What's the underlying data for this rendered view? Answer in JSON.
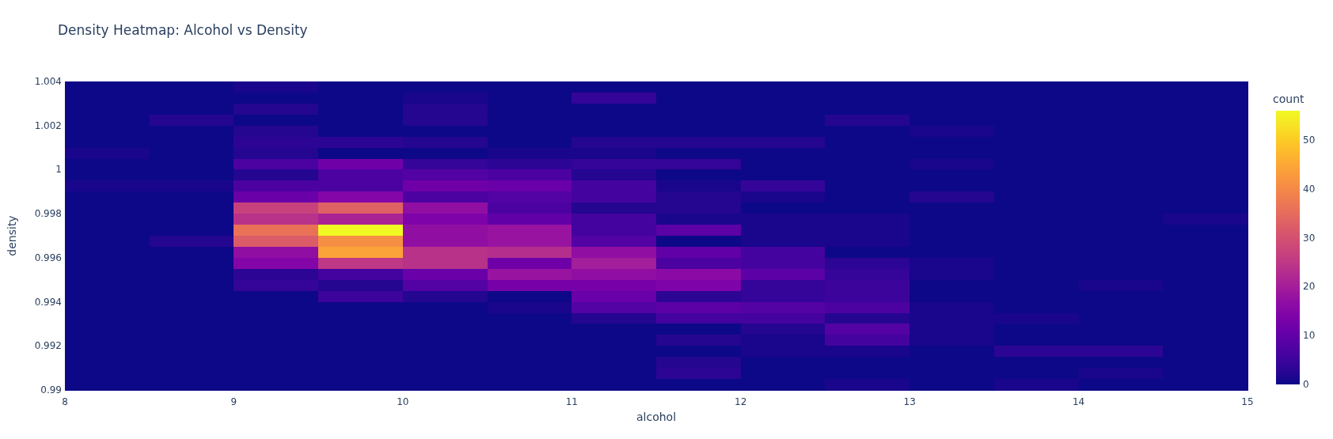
{
  "chart_data": {
    "type": "heatmap",
    "title": "Density Heatmap: Alcohol vs Density",
    "xlabel": "alcohol",
    "ylabel": "density",
    "clabel": "count",
    "xlim": [
      8,
      15
    ],
    "xticks": [
      8,
      9,
      10,
      11,
      12,
      13,
      14,
      15
    ],
    "ylim": [
      0.99,
      1.004
    ],
    "yticks": [
      0.99,
      0.992,
      0.994,
      0.996,
      0.998,
      1,
      1.002,
      1.004
    ],
    "clim": [
      0,
      56
    ],
    "cticks": [
      0,
      10,
      20,
      30,
      40,
      50
    ],
    "cells": [
      [
        0,
        0,
        1,
        0,
        0,
        0,
        0,
        0,
        0,
        0,
        0,
        0,
        0,
        0
      ],
      [
        0,
        0,
        0,
        0,
        1,
        0,
        4,
        0,
        0,
        0,
        0,
        0,
        0,
        0
      ],
      [
        0,
        0,
        2,
        0,
        2,
        0,
        0,
        0,
        0,
        0,
        0,
        0,
        0,
        0
      ],
      [
        0,
        2,
        0,
        0,
        2,
        0,
        0,
        0,
        0,
        2,
        0,
        0,
        0,
        0
      ],
      [
        0,
        0,
        2,
        0,
        0,
        0,
        0,
        0,
        0,
        0,
        1,
        0,
        0,
        0
      ],
      [
        0,
        0,
        3,
        3,
        2,
        0,
        2,
        2,
        2,
        0,
        0,
        0,
        0,
        0
      ],
      [
        1,
        0,
        2,
        0,
        0,
        1,
        1,
        0,
        0,
        0,
        0,
        0,
        0,
        0
      ],
      [
        0,
        0,
        7,
        12,
        4,
        3,
        4,
        4,
        0,
        0,
        1,
        0,
        0,
        0
      ],
      [
        0,
        0,
        2,
        7,
        8,
        7,
        2,
        0,
        0,
        0,
        0,
        0,
        0,
        0
      ],
      [
        1,
        1,
        7,
        7,
        12,
        11,
        6,
        1,
        4,
        0,
        0,
        0,
        0,
        0
      ],
      [
        0,
        0,
        11,
        15,
        7,
        8,
        6,
        2,
        1,
        0,
        2,
        0,
        0,
        0
      ],
      [
        0,
        0,
        27,
        33,
        17,
        7,
        2,
        2,
        0,
        0,
        0,
        0,
        0,
        0
      ],
      [
        0,
        0,
        24,
        21,
        14,
        10,
        6,
        1,
        1,
        1,
        0,
        0,
        0,
        1
      ],
      [
        0,
        0,
        36,
        56,
        17,
        18,
        6,
        9,
        1,
        1,
        0,
        0,
        0,
        0
      ],
      [
        0,
        2,
        32,
        41,
        17,
        18,
        8,
        0,
        1,
        1,
        0,
        0,
        0,
        0
      ],
      [
        0,
        0,
        17,
        44,
        24,
        23,
        17,
        10,
        6,
        0,
        0,
        0,
        0,
        0
      ],
      [
        0,
        0,
        15,
        25,
        24,
        12,
        20,
        7,
        6,
        3,
        1,
        0,
        0,
        0
      ],
      [
        0,
        0,
        3,
        6,
        11,
        18,
        17,
        16,
        9,
        4,
        1,
        0,
        0,
        0
      ],
      [
        0,
        0,
        4,
        2,
        8,
        13,
        13,
        14,
        4,
        5,
        0,
        0,
        1,
        0
      ],
      [
        0,
        0,
        0,
        5,
        2,
        0,
        11,
        3,
        4,
        5,
        0,
        0,
        0,
        0
      ],
      [
        0,
        0,
        0,
        0,
        0,
        1,
        8,
        9,
        8,
        7,
        1,
        0,
        0,
        0
      ],
      [
        0,
        0,
        0,
        0,
        0,
        0,
        2,
        6,
        6,
        2,
        1,
        1,
        0,
        0
      ],
      [
        0,
        0,
        0,
        0,
        0,
        0,
        0,
        0,
        2,
        8,
        1,
        0,
        0,
        0
      ],
      [
        0,
        0,
        0,
        0,
        0,
        0,
        0,
        2,
        1,
        6,
        1,
        0,
        0,
        0
      ],
      [
        0,
        0,
        0,
        0,
        0,
        0,
        0,
        0,
        1,
        1,
        0,
        3,
        3,
        0
      ],
      [
        0,
        0,
        0,
        0,
        0,
        0,
        0,
        2,
        0,
        0,
        0,
        0,
        0,
        0
      ],
      [
        0,
        0,
        0,
        0,
        0,
        0,
        0,
        3,
        0,
        0,
        0,
        0,
        1,
        0
      ],
      [
        0,
        0,
        0,
        0,
        0,
        0,
        0,
        0,
        0,
        1,
        0,
        1,
        0,
        0
      ]
    ]
  }
}
